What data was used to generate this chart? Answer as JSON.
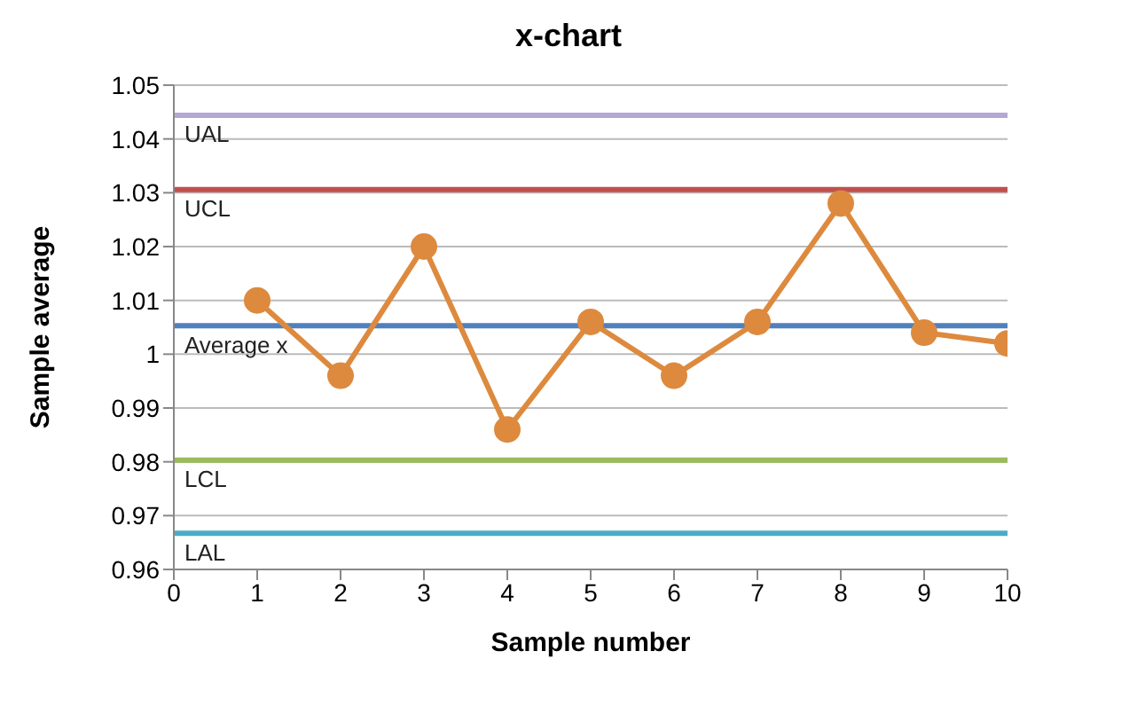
{
  "chart_data": {
    "type": "line",
    "title": "x-chart",
    "xlabel": "Sample number",
    "ylabel": "Sample average",
    "x": [
      1,
      2,
      3,
      4,
      5,
      6,
      7,
      8,
      9,
      10
    ],
    "series": [
      {
        "color": "#dd8a3e",
        "values": [
          1.01,
          0.996,
          1.02,
          0.986,
          1.006,
          0.996,
          1.006,
          1.028,
          1.004,
          1.002
        ]
      }
    ],
    "xlim": [
      0,
      10
    ],
    "xticks": [
      0,
      1,
      2,
      3,
      4,
      5,
      6,
      7,
      8,
      9,
      10
    ],
    "ylim": [
      0.96,
      1.05
    ],
    "yticks": [
      0.96,
      0.97,
      0.98,
      0.99,
      1,
      1.01,
      1.02,
      1.03,
      1.04,
      1.05
    ],
    "grid": "y",
    "marker": "circle",
    "line_style": "solid",
    "legend": false,
    "ref_lines": [
      {
        "axis": "y",
        "value": 1.0444,
        "label": "UAL",
        "color": "#b4a7d6"
      },
      {
        "axis": "y",
        "value": 1.0306,
        "label": "UCL",
        "color": "#c0504d"
      },
      {
        "axis": "y",
        "value": 1.0053,
        "label": "Average x",
        "color": "#4f81bd"
      },
      {
        "axis": "y",
        "value": 0.9803,
        "label": "LCL",
        "color": "#9bbb59"
      },
      {
        "axis": "y",
        "value": 0.9667,
        "label": "LAL",
        "color": "#4bacc6"
      }
    ]
  }
}
